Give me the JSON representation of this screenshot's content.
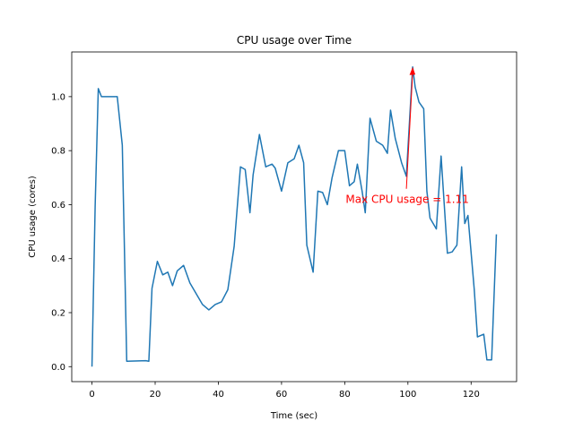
{
  "chart_data": {
    "type": "line",
    "title": "CPU usage over Time",
    "x_label": "Time (sec)",
    "y_label": "CPU usage (cores)",
    "x": [
      0,
      1,
      2,
      3,
      8,
      9.6,
      11,
      17,
      18,
      19,
      20.7,
      22.4,
      24,
      25.5,
      27,
      29,
      31,
      35,
      37,
      39,
      41,
      43,
      45,
      47,
      48.5,
      50,
      51,
      53,
      55,
      57,
      58,
      60,
      62,
      64,
      65.5,
      67,
      68,
      70,
      71.5,
      73,
      74.5,
      76,
      78,
      80,
      81.5,
      83,
      84,
      85.5,
      86.5,
      88,
      90,
      92,
      93.5,
      94.5,
      96,
      98,
      99.5,
      101.5,
      102.3,
      103.5,
      105,
      106,
      107,
      109,
      110.5,
      112.5,
      114,
      115.5,
      117,
      118,
      119,
      121,
      122,
      124,
      125,
      126.5,
      128
    ],
    "series": [
      {
        "name": "CPU usage",
        "color": "#1f77b4",
        "values": [
          0,
          0.59,
          1.03,
          1.0,
          1.0,
          0.82,
          0.02,
          0.022,
          0.02,
          0.29,
          0.39,
          0.34,
          0.35,
          0.3,
          0.355,
          0.375,
          0.31,
          0.23,
          0.21,
          0.23,
          0.24,
          0.285,
          0.445,
          0.74,
          0.73,
          0.57,
          0.71,
          0.86,
          0.74,
          0.75,
          0.735,
          0.65,
          0.755,
          0.77,
          0.82,
          0.755,
          0.45,
          0.35,
          0.65,
          0.645,
          0.6,
          0.7,
          0.8,
          0.8,
          0.67,
          0.685,
          0.75,
          0.65,
          0.57,
          0.92,
          0.835,
          0.82,
          0.79,
          0.95,
          0.845,
          0.755,
          0.705,
          1.11,
          1.035,
          0.98,
          0.955,
          0.65,
          0.55,
          0.51,
          0.78,
          0.42,
          0.425,
          0.45,
          0.74,
          0.53,
          0.56,
          0.285,
          0.11,
          0.12,
          0.025,
          0.025,
          0.49
        ]
      }
    ],
    "annotation": {
      "text": "Max CPU usage = 1.11",
      "x": 101.5,
      "y": 1.11,
      "color": "#ff0000"
    },
    "xlim": [
      -6.4,
      134.4
    ],
    "ylim": [
      -0.0555,
      1.1655
    ],
    "xticks": [
      0,
      20,
      40,
      60,
      80,
      100,
      120
    ],
    "yticks": [
      {
        "value": 0,
        "label": "0.0"
      },
      0.2,
      0.4,
      0.6,
      0.8,
      {
        "value": 1,
        "label": "1.0"
      }
    ]
  }
}
